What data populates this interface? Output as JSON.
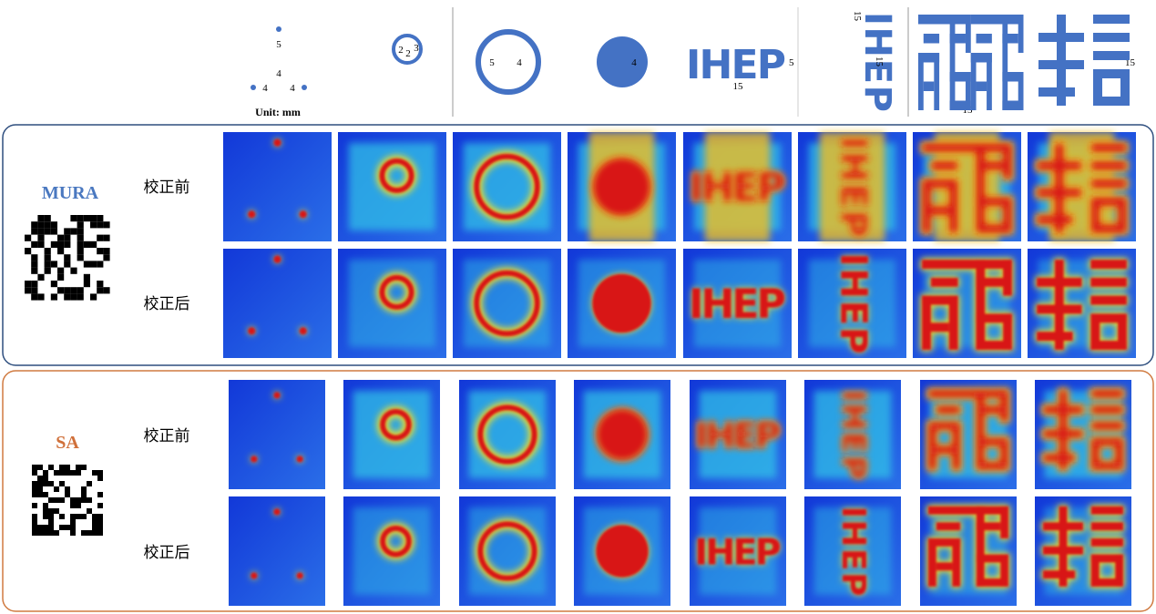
{
  "sources": {
    "unit": "Unit: mm",
    "point_labels": [
      "5",
      "4",
      "4",
      "4"
    ],
    "small_ring_labels": [
      "2",
      "2",
      "3"
    ],
    "ring_labels": [
      "5",
      "4"
    ],
    "disk_label": "4",
    "word": "IHEP",
    "word_labels": [
      "5",
      "15"
    ],
    "rotated_word_labels": [
      "15",
      "15"
    ],
    "glyph_labels": [
      "15",
      "15"
    ]
  },
  "panels": [
    {
      "name": "MURA",
      "rows": [
        "校正前",
        "校正后"
      ]
    },
    {
      "name": "SA",
      "rows": [
        "校正前",
        "校正后"
      ]
    }
  ]
}
